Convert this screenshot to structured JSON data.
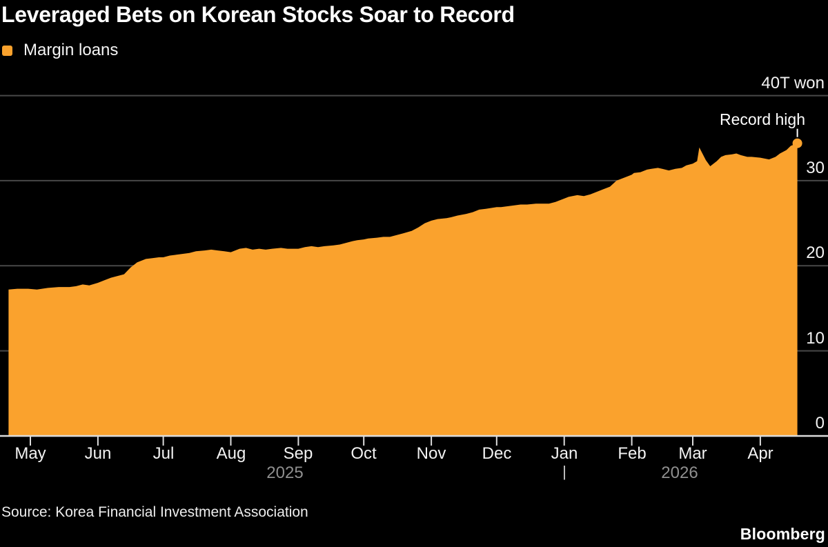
{
  "header": {
    "title": "Leveraged Bets on Korean Stocks Soar to Record"
  },
  "legend": {
    "label": "Margin loans"
  },
  "footer": {
    "source": "Source: Korea Financial Investment Association",
    "brand": "Bloomberg"
  },
  "colors": {
    "accent_orange": "#FAA22D",
    "background": "#000000",
    "gridline": "#484848",
    "axis_line": "#DCDCDC",
    "annotation_white": "#FFFFFF",
    "year_label_grey": "#8F8F8F"
  },
  "chart_data": {
    "type": "area",
    "title": "Leveraged Bets on Korean Stocks Soar to Record",
    "series_name": "Margin loans",
    "unit": "trillion won",
    "xlabel": "",
    "ylabel": "T won",
    "ylim": [
      0,
      40
    ],
    "grid": "horizontal",
    "legend_position": "top-left",
    "y_ticks": [
      {
        "label": "40T won",
        "value": 40
      },
      {
        "label": "30",
        "value": 30
      },
      {
        "label": "20",
        "value": 20
      },
      {
        "label": "10",
        "value": 10
      },
      {
        "label": "0",
        "value": 0
      }
    ],
    "x_ticks": [
      {
        "label": "May",
        "date": "2025-05-01"
      },
      {
        "label": "Jun",
        "date": "2025-06-01"
      },
      {
        "label": "Jul",
        "date": "2025-07-01"
      },
      {
        "label": "Aug",
        "date": "2025-08-01"
      },
      {
        "label": "Sep",
        "date": "2025-09-01"
      },
      {
        "label": "Oct",
        "date": "2025-10-01"
      },
      {
        "label": "Nov",
        "date": "2025-11-01"
      },
      {
        "label": "Dec",
        "date": "2025-12-01"
      },
      {
        "label": "Jan",
        "date": "2026-01-01"
      },
      {
        "label": "Feb",
        "date": "2026-02-01"
      },
      {
        "label": "Mar",
        "date": "2026-03-01"
      },
      {
        "label": "Apr",
        "date": "2026-04-01"
      }
    ],
    "year_labels": [
      {
        "label": "2025",
        "anchor_date": "2025-08-26"
      },
      {
        "label": "2026",
        "anchor_date": "2026-02-23"
      }
    ],
    "year_separator": {
      "glyph": "|",
      "date": "2026-01-01"
    },
    "record_high": {
      "label": "Record high",
      "date": "2026-04-18",
      "value": 34.4
    },
    "points": [
      [
        "2025-04-21",
        17.2
      ],
      [
        "2025-04-25",
        17.3
      ],
      [
        "2025-04-30",
        17.3
      ],
      [
        "2025-05-04",
        17.2
      ],
      [
        "2025-05-09",
        17.4
      ],
      [
        "2025-05-14",
        17.5
      ],
      [
        "2025-05-19",
        17.5
      ],
      [
        "2025-05-22",
        17.6
      ],
      [
        "2025-05-25",
        17.8
      ],
      [
        "2025-05-28",
        17.7
      ],
      [
        "2025-06-01",
        18.0
      ],
      [
        "2025-06-04",
        18.3
      ],
      [
        "2025-06-07",
        18.6
      ],
      [
        "2025-06-10",
        18.8
      ],
      [
        "2025-06-13",
        19.0
      ],
      [
        "2025-06-16",
        19.8
      ],
      [
        "2025-06-19",
        20.4
      ],
      [
        "2025-06-23",
        20.8
      ],
      [
        "2025-06-26",
        20.9
      ],
      [
        "2025-06-29",
        21.0
      ],
      [
        "2025-07-01",
        21.0
      ],
      [
        "2025-07-04",
        21.2
      ],
      [
        "2025-07-07",
        21.3
      ],
      [
        "2025-07-10",
        21.4
      ],
      [
        "2025-07-13",
        21.5
      ],
      [
        "2025-07-16",
        21.7
      ],
      [
        "2025-07-20",
        21.8
      ],
      [
        "2025-07-23",
        21.9
      ],
      [
        "2025-07-26",
        21.8
      ],
      [
        "2025-07-29",
        21.7
      ],
      [
        "2025-08-01",
        21.6
      ],
      [
        "2025-08-05",
        22.0
      ],
      [
        "2025-08-08",
        22.1
      ],
      [
        "2025-08-11",
        21.9
      ],
      [
        "2025-08-14",
        22.0
      ],
      [
        "2025-08-17",
        21.9
      ],
      [
        "2025-08-20",
        22.0
      ],
      [
        "2025-08-24",
        22.1
      ],
      [
        "2025-08-27",
        22.0
      ],
      [
        "2025-09-01",
        22.0
      ],
      [
        "2025-09-04",
        22.2
      ],
      [
        "2025-09-07",
        22.3
      ],
      [
        "2025-09-10",
        22.2
      ],
      [
        "2025-09-13",
        22.3
      ],
      [
        "2025-09-17",
        22.4
      ],
      [
        "2025-09-20",
        22.5
      ],
      [
        "2025-09-23",
        22.7
      ],
      [
        "2025-09-26",
        22.9
      ],
      [
        "2025-09-28",
        23.0
      ],
      [
        "2025-10-01",
        23.1
      ],
      [
        "2025-10-03",
        23.2
      ],
      [
        "2025-10-07",
        23.3
      ],
      [
        "2025-10-10",
        23.4
      ],
      [
        "2025-10-13",
        23.4
      ],
      [
        "2025-10-16",
        23.6
      ],
      [
        "2025-10-19",
        23.8
      ],
      [
        "2025-10-23",
        24.1
      ],
      [
        "2025-10-26",
        24.5
      ],
      [
        "2025-10-29",
        25.0
      ],
      [
        "2025-11-01",
        25.3
      ],
      [
        "2025-11-04",
        25.5
      ],
      [
        "2025-11-08",
        25.6
      ],
      [
        "2025-11-10",
        25.7
      ],
      [
        "2025-11-13",
        25.9
      ],
      [
        "2025-11-17",
        26.1
      ],
      [
        "2025-11-20",
        26.3
      ],
      [
        "2025-11-23",
        26.6
      ],
      [
        "2025-11-26",
        26.7
      ],
      [
        "2025-12-01",
        26.9
      ],
      [
        "2025-12-03",
        26.9
      ],
      [
        "2025-12-06",
        27.0
      ],
      [
        "2025-12-09",
        27.1
      ],
      [
        "2025-12-12",
        27.2
      ],
      [
        "2025-12-15",
        27.2
      ],
      [
        "2025-12-19",
        27.3
      ],
      [
        "2025-12-22",
        27.3
      ],
      [
        "2025-12-25",
        27.3
      ],
      [
        "2025-12-28",
        27.5
      ],
      [
        "2026-01-01",
        27.9
      ],
      [
        "2026-01-03",
        28.1
      ],
      [
        "2026-01-07",
        28.3
      ],
      [
        "2026-01-10",
        28.2
      ],
      [
        "2026-01-13",
        28.4
      ],
      [
        "2026-01-16",
        28.7
      ],
      [
        "2026-01-19",
        29.0
      ],
      [
        "2026-01-22",
        29.3
      ],
      [
        "2026-01-25",
        30.0
      ],
      [
        "2026-01-29",
        30.4
      ],
      [
        "2026-02-01",
        30.7
      ],
      [
        "2026-02-02",
        30.9
      ],
      [
        "2026-02-05",
        31.0
      ],
      [
        "2026-02-08",
        31.3
      ],
      [
        "2026-02-10",
        31.4
      ],
      [
        "2026-02-13",
        31.5
      ],
      [
        "2026-02-15",
        31.4
      ],
      [
        "2026-02-18",
        31.2
      ],
      [
        "2026-02-21",
        31.4
      ],
      [
        "2026-02-24",
        31.5
      ],
      [
        "2026-02-26",
        31.8
      ],
      [
        "2026-03-01",
        32.0
      ],
      [
        "2026-03-03",
        32.3
      ],
      [
        "2026-03-04",
        33.9
      ],
      [
        "2026-03-07",
        32.4
      ],
      [
        "2026-03-09",
        31.7
      ],
      [
        "2026-03-12",
        32.3
      ],
      [
        "2026-03-14",
        32.8
      ],
      [
        "2026-03-16",
        33.0
      ],
      [
        "2026-03-19",
        33.1
      ],
      [
        "2026-03-21",
        33.2
      ],
      [
        "2026-03-23",
        33.0
      ],
      [
        "2026-03-26",
        32.8
      ],
      [
        "2026-03-28",
        32.8
      ],
      [
        "2026-04-01",
        32.7
      ],
      [
        "2026-04-03",
        32.6
      ],
      [
        "2026-04-05",
        32.5
      ],
      [
        "2026-04-08",
        32.8
      ],
      [
        "2026-04-10",
        33.2
      ],
      [
        "2026-04-13",
        33.6
      ],
      [
        "2026-04-15",
        34.1
      ],
      [
        "2026-04-18",
        34.4
      ]
    ]
  }
}
